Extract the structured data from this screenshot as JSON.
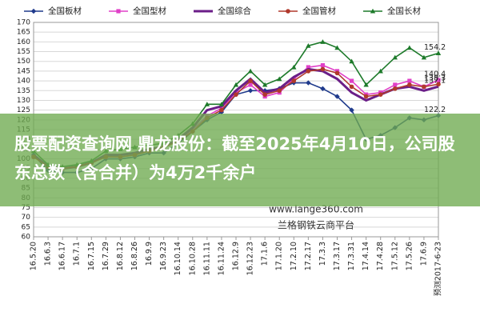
{
  "chart_data": {
    "type": "line",
    "categories": [
      "16.5.20",
      "16.6.3",
      "16.6.17",
      "16.7.1",
      "16.7.15",
      "16.7.29",
      "16.8.12",
      "16.8.26",
      "16.9.9",
      "16.9.23",
      "16.10.14",
      "16.10.28",
      "16.11.11",
      "16.11.24",
      "16.12.9",
      "16.12.23",
      "17.1.6",
      "17.1.20",
      "17.2.10",
      "17.2.17",
      "17.3.3",
      "17.3.17",
      "17.3.31",
      "17.4.14",
      "17.4.28",
      "17.5.12",
      "17.5.26",
      "17.6.9",
      "预测2017-6-23"
    ],
    "series": [
      {
        "name": "全国板材",
        "color": "#1f3a8c",
        "marker": "diamond",
        "values": [
          102,
          94,
          93,
          93,
          95,
          100,
          100,
          101,
          103,
          103,
          108,
          114,
          120,
          124,
          133,
          135,
          135,
          136,
          139,
          139,
          136,
          132,
          125,
          110,
          112,
          116,
          121,
          120,
          122.2
        ]
      },
      {
        "name": "全国型材",
        "color": "#e040c8",
        "marker": "square",
        "values": [
          101,
          96,
          95,
          96,
          98,
          101,
          101,
          102,
          104,
          106,
          109,
          115,
          122,
          126,
          134,
          138,
          132,
          134,
          141,
          147,
          148,
          145,
          140,
          133,
          134,
          138,
          140,
          137,
          140.4
        ]
      },
      {
        "name": "全国综合",
        "color": "#6b1e88",
        "marker": "none",
        "values": [
          102,
          96,
          95,
          96,
          98,
          102,
          102,
          103,
          105,
          106,
          110,
          116,
          125,
          127,
          135,
          141,
          134,
          136,
          142,
          146,
          145,
          141,
          134,
          130,
          133,
          136,
          137,
          135,
          137.1
        ]
      },
      {
        "name": "全国管材",
        "color": "#b0392c",
        "marker": "circle",
        "values": [
          101,
          96,
          95,
          96,
          98,
          101,
          101,
          102,
          104,
          106,
          109,
          114,
          121,
          125,
          133,
          140,
          133,
          135,
          140,
          145,
          146,
          144,
          137,
          132,
          133,
          136,
          138,
          137,
          138.3
        ]
      },
      {
        "name": "全国长材",
        "color": "#1d7a2a",
        "marker": "triangle",
        "values": [
          104,
          97,
          96,
          97,
          99,
          104,
          105,
          106,
          107,
          108,
          112,
          118,
          128,
          128,
          138,
          145,
          138,
          141,
          147,
          158,
          160,
          157,
          150,
          138,
          145,
          152,
          157,
          152,
          154.2
        ]
      }
    ],
    "ylim": [
      60,
      170
    ],
    "yticks": [
      60,
      65,
      70,
      75,
      80,
      85,
      90,
      95,
      100,
      105,
      110,
      115,
      120,
      125,
      130,
      135,
      140,
      145,
      150,
      155,
      160,
      165,
      170
    ],
    "grid": true,
    "watermarks": [
      "www.lange360.com",
      "兰格钢铁云商平台"
    ]
  },
  "banner": {
    "text": "股票配资查询网 鼎龙股份：截至2025年4月10日，公司股东总数（含合并）为4万2千余户"
  }
}
